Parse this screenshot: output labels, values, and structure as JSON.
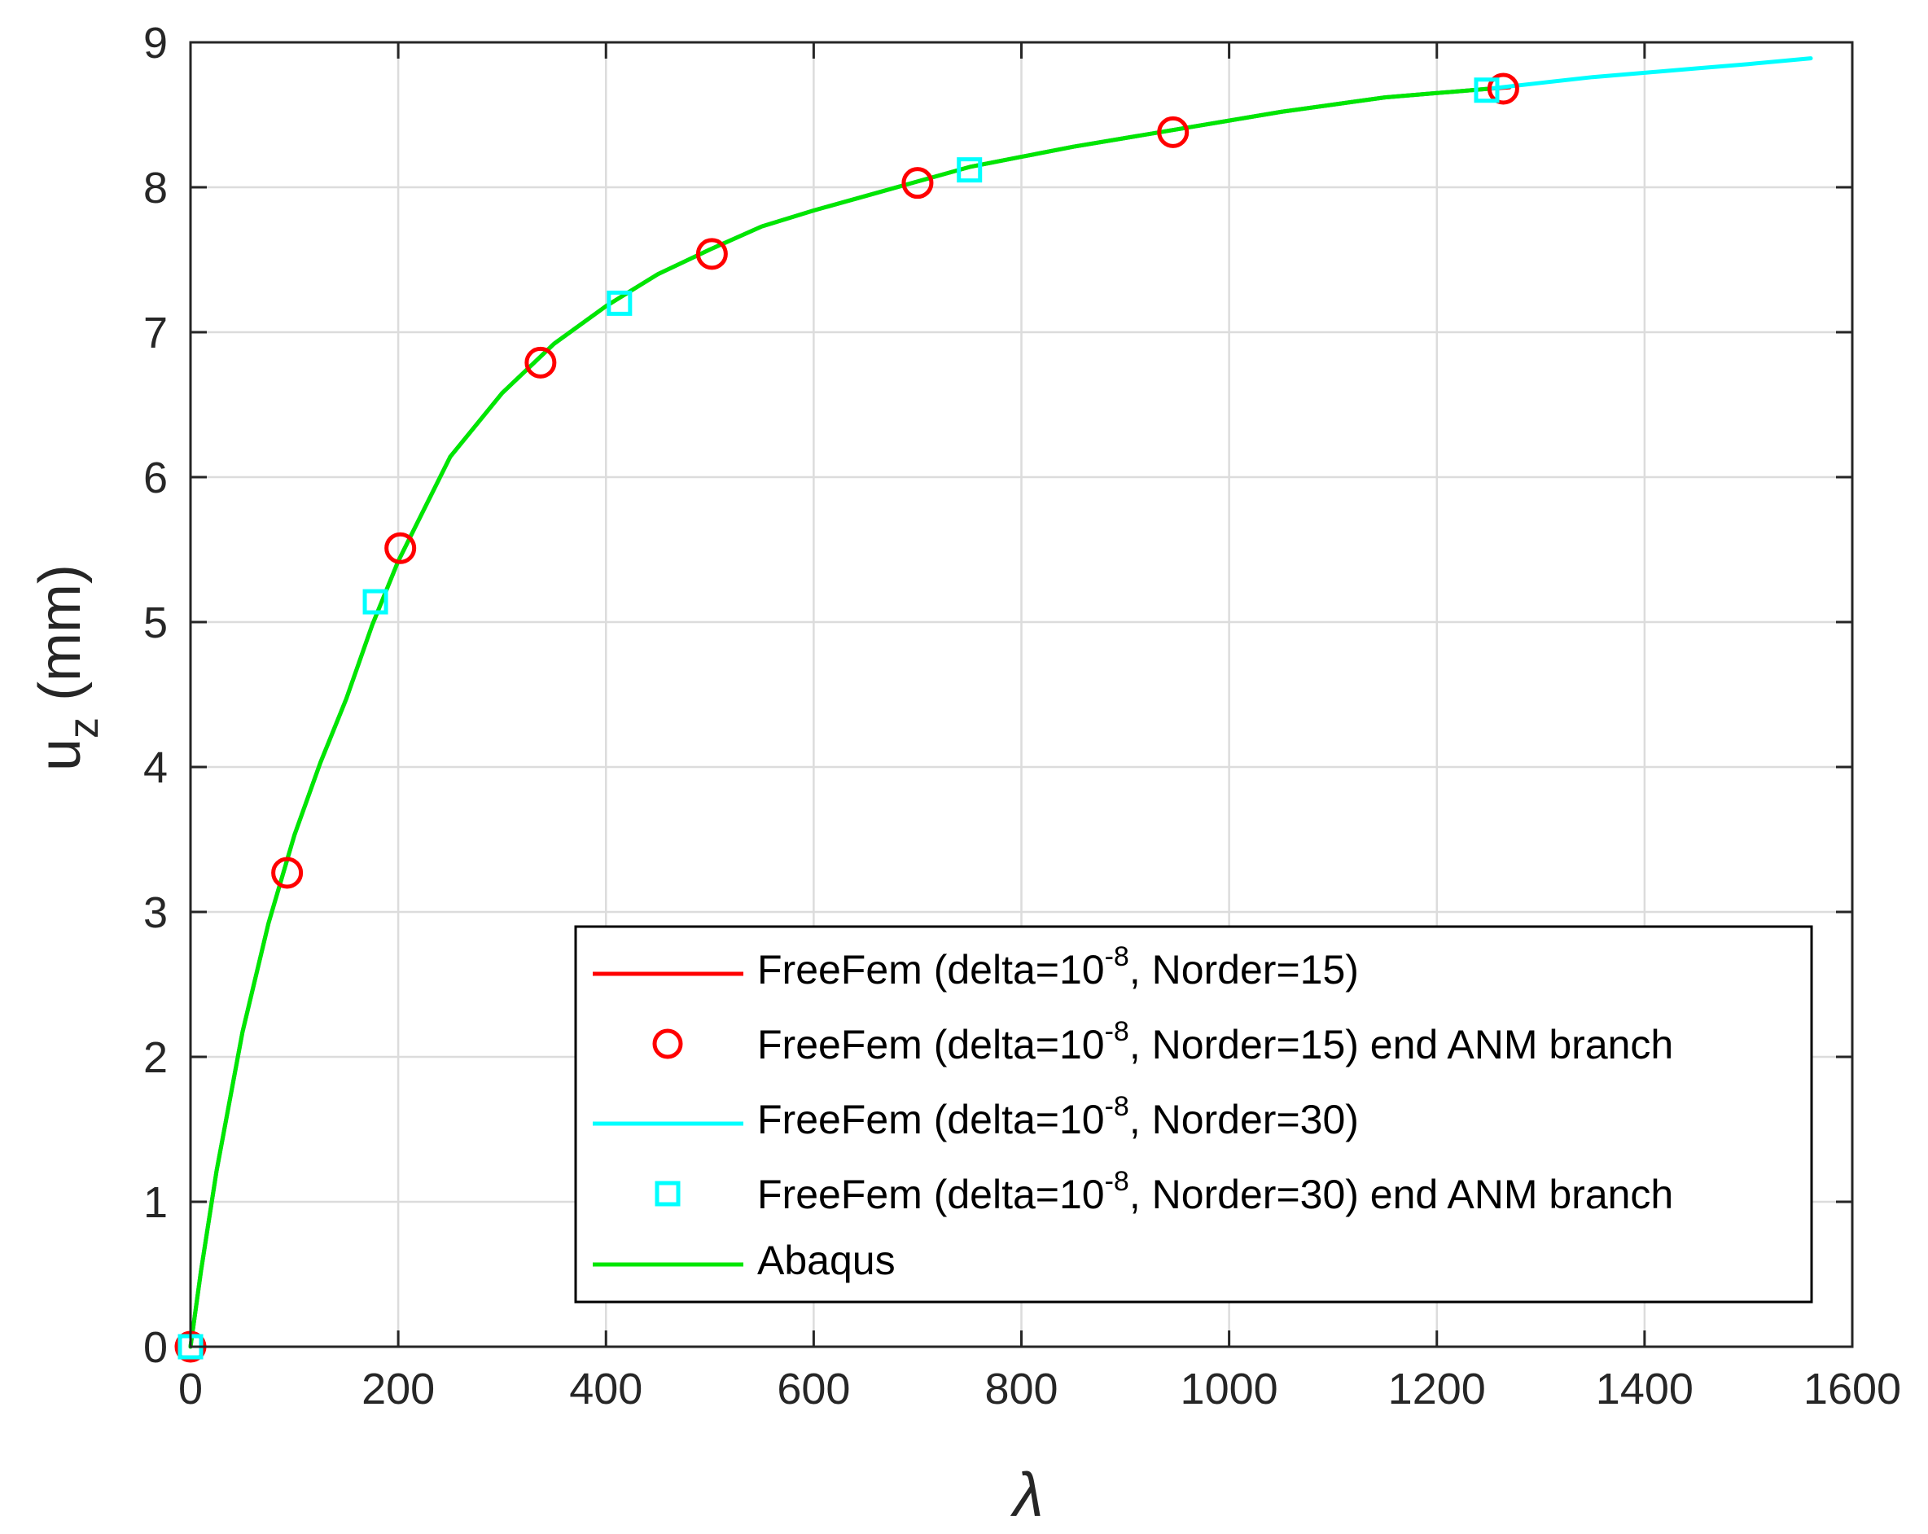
{
  "chart_data": {
    "type": "line",
    "title": "",
    "xlabel": "λ",
    "ylabel": {
      "main": "u",
      "sub": "z",
      "suffix": " (mm)"
    },
    "xlim": [
      0,
      1600
    ],
    "ylim": [
      0,
      9
    ],
    "x_ticks": [
      0,
      200,
      400,
      600,
      800,
      1000,
      1200,
      1400,
      1600
    ],
    "y_ticks": [
      0,
      1,
      2,
      3,
      4,
      5,
      6,
      7,
      8,
      9
    ],
    "grid": true,
    "legend_position": "bottom-right",
    "series": [
      {
        "key": "ff15_line",
        "name": {
          "pre": "FreeFem (delta=10",
          "sup": "-8",
          "post": ", Norder=15)"
        },
        "kind": "line",
        "color": "#ff0000",
        "x": [
          0,
          10,
          25,
          50,
          75,
          100,
          125,
          150,
          175,
          200,
          250,
          300,
          350,
          400,
          450,
          500,
          550,
          600,
          650,
          700,
          750,
          800,
          850,
          900,
          950,
          1000,
          1050,
          1100,
          1150,
          1200,
          1250,
          1270
        ],
        "y": [
          0,
          0.52,
          1.21,
          2.17,
          2.92,
          3.53,
          4.03,
          4.47,
          4.98,
          5.42,
          6.14,
          6.58,
          6.92,
          7.18,
          7.4,
          7.57,
          7.73,
          7.84,
          7.94,
          8.04,
          8.14,
          8.21,
          8.28,
          8.34,
          8.4,
          8.46,
          8.52,
          8.57,
          8.62,
          8.65,
          8.68,
          8.69
        ]
      },
      {
        "key": "ff15_points",
        "name": {
          "pre": "FreeFem (delta=10",
          "sup": "-8",
          "post": ", Norder=15) end ANM branch"
        },
        "kind": "circle",
        "color": "#ff0000",
        "x": [
          0,
          93,
          202,
          337,
          502,
          700,
          946,
          1264
        ],
        "y": [
          0,
          3.27,
          5.51,
          6.79,
          7.54,
          8.03,
          8.38,
          8.68
        ]
      },
      {
        "key": "ff30_line",
        "name": {
          "pre": "FreeFem (delta=10",
          "sup": "-8",
          "post": ", Norder=30)"
        },
        "kind": "line",
        "color": "#00ffff",
        "x": [
          0,
          10,
          25,
          50,
          75,
          100,
          125,
          150,
          175,
          200,
          250,
          300,
          350,
          400,
          450,
          500,
          550,
          600,
          650,
          700,
          750,
          800,
          850,
          900,
          950,
          1000,
          1050,
          1100,
          1150,
          1200,
          1250,
          1300,
          1350,
          1400,
          1450,
          1500,
          1560
        ],
        "y": [
          0,
          0.52,
          1.21,
          2.17,
          2.92,
          3.53,
          4.03,
          4.47,
          4.98,
          5.42,
          6.14,
          6.58,
          6.92,
          7.18,
          7.4,
          7.57,
          7.73,
          7.84,
          7.94,
          8.04,
          8.14,
          8.21,
          8.28,
          8.34,
          8.4,
          8.46,
          8.52,
          8.57,
          8.62,
          8.65,
          8.68,
          8.72,
          8.76,
          8.79,
          8.82,
          8.85,
          8.89
        ]
      },
      {
        "key": "ff30_points",
        "name": {
          "pre": "FreeFem (delta=10",
          "sup": "-8",
          "post": ", Norder=30) end ANM branch"
        },
        "kind": "square",
        "color": "#00ffff",
        "x": [
          0,
          178,
          413,
          750,
          1248
        ],
        "y": [
          0,
          5.14,
          7.2,
          8.12,
          8.67
        ]
      },
      {
        "key": "abaqus",
        "name": {
          "pre": "Abaqus",
          "sup": "",
          "post": ""
        },
        "kind": "line",
        "color": "#00e600",
        "x": [
          0,
          10,
          25,
          50,
          75,
          100,
          125,
          150,
          175,
          200,
          250,
          300,
          350,
          400,
          450,
          500,
          550,
          600,
          650,
          700,
          750,
          800,
          850,
          900,
          950,
          1000,
          1050,
          1100,
          1150,
          1200,
          1250
        ],
        "y": [
          0,
          0.52,
          1.21,
          2.17,
          2.92,
          3.53,
          4.03,
          4.47,
          4.98,
          5.42,
          6.14,
          6.58,
          6.92,
          7.18,
          7.4,
          7.57,
          7.73,
          7.84,
          7.94,
          8.04,
          8.14,
          8.21,
          8.28,
          8.34,
          8.4,
          8.46,
          8.52,
          8.57,
          8.62,
          8.65,
          8.68
        ]
      }
    ]
  }
}
